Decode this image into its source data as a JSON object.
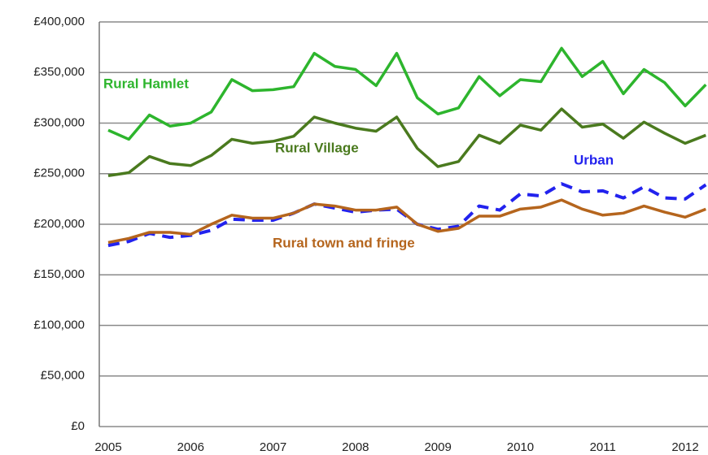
{
  "chart_data": {
    "type": "line",
    "categories": [
      "2005",
      null,
      null,
      null,
      "2006",
      null,
      null,
      null,
      "2007",
      null,
      null,
      null,
      "2008",
      null,
      null,
      null,
      "2009",
      null,
      null,
      null,
      "2010",
      null,
      null,
      null,
      "2011",
      null,
      null,
      null,
      "2012",
      null
    ],
    "series": [
      {
        "name": "Rural Hamlet",
        "color": "#2db52d",
        "dashed": false,
        "values": [
          293000,
          284000,
          308000,
          297000,
          300000,
          311000,
          343000,
          332000,
          333000,
          336000,
          369000,
          356000,
          353000,
          337000,
          369000,
          325000,
          309000,
          315000,
          346000,
          327000,
          343000,
          341000,
          374000,
          346000,
          361000,
          329000,
          353000,
          340000,
          317000,
          338000
        ]
      },
      {
        "name": "Rural Village",
        "color": "#4a7a1e",
        "dashed": false,
        "values": [
          248000,
          251000,
          267000,
          260000,
          258000,
          268000,
          284000,
          280000,
          282000,
          287000,
          306000,
          300000,
          295000,
          292000,
          306000,
          275000,
          257000,
          262000,
          288000,
          280000,
          298000,
          293000,
          314000,
          296000,
          299000,
          285000,
          301000,
          290000,
          280000,
          288000
        ]
      },
      {
        "name": "Urban",
        "color": "#2222ee",
        "dashed": true,
        "values": [
          179000,
          183000,
          191000,
          187000,
          189000,
          194000,
          205000,
          204000,
          204000,
          211000,
          220000,
          216000,
          212000,
          214000,
          215000,
          200000,
          195000,
          198000,
          218000,
          214000,
          230000,
          228000,
          240000,
          232000,
          233000,
          226000,
          237000,
          226000,
          225000,
          239000
        ]
      },
      {
        "name": "Rural town and fringe",
        "color": "#b5651d",
        "dashed": false,
        "values": [
          182000,
          186000,
          192000,
          192000,
          190000,
          200000,
          209000,
          206000,
          206000,
          211000,
          220000,
          218000,
          214000,
          214000,
          217000,
          200000,
          193000,
          196000,
          208000,
          208000,
          215000,
          217000,
          224000,
          215000,
          209000,
          211000,
          218000,
          212000,
          207000,
          215000
        ]
      }
    ],
    "ylim": [
      0,
      400000
    ],
    "yticks": [
      {
        "value": 0,
        "label": "£0"
      },
      {
        "value": 50000,
        "label": "£50,000"
      },
      {
        "value": 100000,
        "label": "£100,000"
      },
      {
        "value": 150000,
        "label": "£150,000"
      },
      {
        "value": 200000,
        "label": "£200,000"
      },
      {
        "value": 250000,
        "label": "£250,000"
      },
      {
        "value": 300000,
        "label": "£300,000"
      },
      {
        "value": 350000,
        "label": "£350,000"
      },
      {
        "value": 400000,
        "label": "£400,000"
      }
    ],
    "grid": true
  }
}
